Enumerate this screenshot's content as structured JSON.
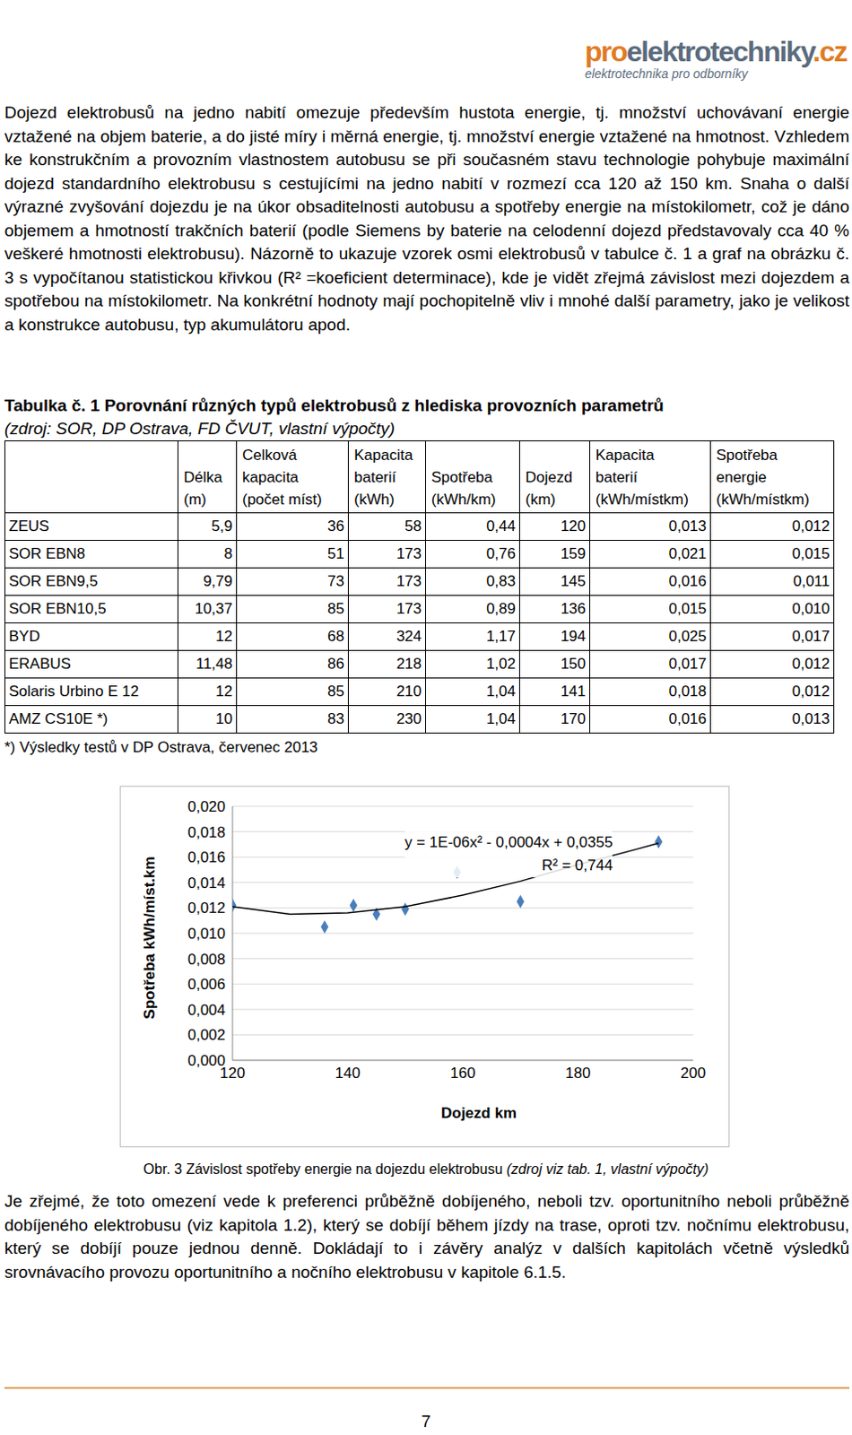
{
  "logo": {
    "parts": [
      "pro",
      "elektrotechniky",
      ".cz"
    ],
    "tagline": "elektrotechnika pro odborníky"
  },
  "paragraphs_top": [
    "Dojezd elektrobusů na jedno nabití omezuje především hustota energie, tj. množství uchovávaní energie vztažené na objem baterie, a do jisté míry i měrná energie, tj. množství energie vztažené na hmotnost. Vzhledem ke konstrukčním a provozním vlastnostem autobusu se při současném stavu technologie pohybuje maximální dojezd standardního elektrobusu s cestujícími na jedno nabití v rozmezí cca 120 až 150 km. Snaha o další výrazné zvyšování dojezdu je na úkor obsaditelnosti autobusu a spotřeby energie na místokilometr, což je dáno objemem a hmotností trakčních baterií (podle Siemens by baterie na celodenní dojezd představovaly cca 40 % veškeré hmotnosti elektrobusu). Názorně to ukazuje vzorek osmi elektrobusů v tabulce č. 1 a graf na obrázku č. 3 s vypočítanou statistickou křivkou (R² =koeficient determinace), kde je vidět zřejmá závislost mezi dojezdem a spotřebou na místokilometr. Na konkrétní hodnoty mají pochopitelně vliv i mnohé další parametry, jako je velikost a konstrukce autobusu, typ akumulátoru apod."
  ],
  "table": {
    "title": "Tabulka č. 1 Porovnání různých typů elektrobusů z hlediska provozních parametrů",
    "source": "(zdroj: SOR, DP Ostrava, FD ČVUT, vlastní výpočty)",
    "header": [
      [],
      [
        "Délka",
        "(m)"
      ],
      [
        "Celková",
        "kapacita",
        "(počet míst)"
      ],
      [
        "Kapacita",
        "baterií",
        "(kWh)"
      ],
      [
        "Spotřeba",
        "(kWh/km)"
      ],
      [
        "Dojezd",
        "(km)"
      ],
      [
        "Kapacita",
        "baterií",
        "(kWh/místkm)"
      ],
      [
        "Spotřeba",
        "energie",
        "(kWh/místkm)"
      ]
    ],
    "rows": [
      [
        "ZEUS",
        "5,9",
        "36",
        "58",
        "0,44",
        "120",
        "0,013",
        "0,012"
      ],
      [
        "SOR EBN8",
        "8",
        "51",
        "173",
        "0,76",
        "159",
        "0,021",
        "0,015"
      ],
      [
        "SOR EBN9,5",
        "9,79",
        "73",
        "173",
        "0,83",
        "145",
        "0,016",
        "0,011"
      ],
      [
        "SOR EBN10,5",
        "10,37",
        "85",
        "173",
        "0,89",
        "136",
        "0,015",
        "0,010"
      ],
      [
        "BYD",
        "12",
        "68",
        "324",
        "1,17",
        "194",
        "0,025",
        "0,017"
      ],
      [
        "ERABUS",
        "11,48",
        "86",
        "218",
        "1,02",
        "150",
        "0,017",
        "0,012"
      ],
      [
        "Solaris Urbino E 12",
        "12",
        "85",
        "210",
        "1,04",
        "141",
        "0,018",
        "0,012"
      ],
      [
        "AMZ CS10E *)",
        "10",
        "83",
        "230",
        "1,04",
        "170",
        "0,016",
        "0,013"
      ]
    ],
    "footnote": "*) Výsledky testů v DP Ostrava, červenec 2013"
  },
  "chart_data": {
    "type": "scatter",
    "x_label": "Dojezd km",
    "y_label": "Spotřeba kWh/míst.km",
    "annotations": [
      "y = 1E-06x² - 0,0004x + 0,0355",
      "R² = 0,744"
    ],
    "grid": true,
    "xlim": [
      120,
      200
    ],
    "xticks": [
      120,
      140,
      160,
      180,
      200
    ],
    "ylim": [
      0,
      0.02
    ],
    "yticks": [
      {
        "value": 0,
        "label": "0,000"
      },
      {
        "value": 0.002,
        "label": "0,002"
      },
      {
        "value": 0.004,
        "label": "0,004"
      },
      {
        "value": 0.006,
        "label": "0,006"
      },
      {
        "value": 0.008,
        "label": "0,008"
      },
      {
        "value": 0.01,
        "label": "0,010"
      },
      {
        "value": 0.012,
        "label": "0,012"
      },
      {
        "value": 0.014,
        "label": "0,014"
      },
      {
        "value": 0.016,
        "label": "0,016"
      },
      {
        "value": 0.018,
        "label": "0,018"
      },
      {
        "value": 0.02,
        "label": "0,020"
      }
    ],
    "series": [
      {
        "type": "scatter",
        "marker": "diamond",
        "color": "#4a7ebb",
        "x": [
          120,
          136,
          141,
          145,
          150,
          159,
          170,
          194
        ],
        "values": [
          0.0122,
          0.0105,
          0.0122,
          0.0115,
          0.0119,
          0.0148,
          0.0125,
          0.0172
        ]
      },
      {
        "type": "line",
        "color": "#000000",
        "x": [
          120,
          130,
          140,
          150,
          160,
          170,
          180,
          190,
          194
        ],
        "values": [
          0.0121,
          0.0115,
          0.0116,
          0.0121,
          0.013,
          0.0141,
          0.0154,
          0.0166,
          0.0171
        ]
      }
    ]
  },
  "caption": {
    "label": "Obr. 3 Závislost spotřeby energie na dojezdu elektrobusu ",
    "source": "(zdroj viz tab. 1, vlastní výpočty)"
  },
  "paragraphs_bottom": [
    "Je zřejmé, že toto omezení vede k preferenci průběžně dobíjeného, neboli tzv. oportunitního neboli průběžně dobíjeného elektrobusu (viz kapitola 1.2), který se dobíjí během jízdy na trase, oproti tzv. nočnímu elektrobusu, který se dobíjí pouze jednou denně. Dokládají to i závěry analýz v dalších kapitolách včetně výsledků srovnávacího provozu oportunitního a nočního elektrobusu v kapitole 6.1.5."
  ],
  "page_number": "7"
}
